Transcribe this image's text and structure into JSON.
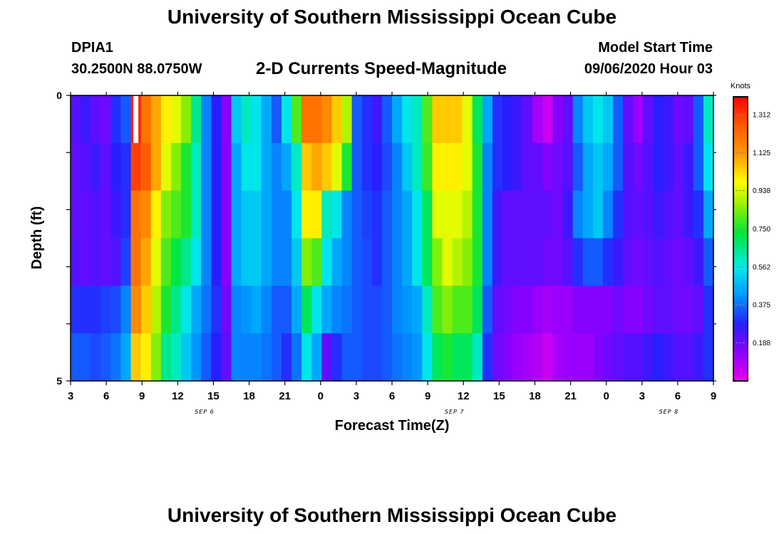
{
  "header": {
    "title": "University of Southern Mississippi Ocean Cube",
    "station": "DPIA1",
    "coordinates": "30.2500N 88.0750W",
    "plot_title": "2-D Currents Speed-Magnitude",
    "model_start_label": "Model Start Time",
    "model_start_value": "09/06/2020 Hour 03"
  },
  "footer": {
    "title": "University of Southern Mississippi Ocean Cube"
  },
  "colors": {
    "grid_line": "#000000",
    "missing_data": "#ffffff"
  },
  "chart_data": {
    "type": "heatmap",
    "title": "2-D Currents Speed-Magnitude",
    "xlabel": "Forecast Time(Z)",
    "ylabel": "Depth (ft)",
    "x_ticks": [
      "3",
      "6",
      "9",
      "12",
      "15",
      "18",
      "21",
      "0",
      "3",
      "6",
      "9",
      "12",
      "15",
      "18",
      "21",
      "0",
      "3",
      "6",
      "9"
    ],
    "date_labels": [
      {
        "label": "SEP 6",
        "after_tick": 3
      },
      {
        "label": "SEP 7",
        "after_tick": 10
      },
      {
        "label": "SEP 8",
        "after_tick": 16
      }
    ],
    "y_ticks": [
      "0",
      "5"
    ],
    "y_range": [
      0,
      5
    ],
    "x_range_hours": [
      0,
      54
    ],
    "colorbar": {
      "label": "Knots",
      "min": 0,
      "max": 1.4,
      "ticks": [
        "1.312",
        "1.125",
        "0.938",
        "0.750",
        "0.562",
        "0.375",
        "0.188"
      ]
    },
    "missing_cells": [
      {
        "row": 0,
        "col": 6
      }
    ],
    "rows": [
      [
        0.22,
        0.25,
        0.2,
        0.18,
        0.3,
        0.35,
        1.35,
        1.2,
        1.1,
        1.0,
        0.95,
        0.85,
        0.65,
        0.4,
        0.28,
        0.15,
        0.5,
        0.6,
        0.55,
        0.45,
        0.35,
        0.55,
        0.8,
        1.2,
        1.2,
        1.15,
        1.05,
        0.9,
        0.35,
        0.3,
        0.25,
        0.35,
        0.45,
        0.55,
        0.6,
        0.8,
        1.05,
        1.05,
        1.05,
        0.95,
        0.7,
        0.45,
        0.3,
        0.28,
        0.25,
        0.2,
        0.1,
        0.05,
        0.15,
        0.2,
        0.4,
        0.5,
        0.55,
        0.5,
        0.35,
        0.2,
        0.12,
        0.2,
        0.28,
        0.25,
        0.18,
        0.2,
        0.35,
        0.6
      ],
      [
        0.2,
        0.22,
        0.25,
        0.2,
        0.28,
        0.3,
        1.3,
        1.25,
        1.1,
        0.95,
        0.85,
        0.75,
        0.6,
        0.4,
        0.28,
        0.15,
        0.45,
        0.55,
        0.55,
        0.45,
        0.4,
        0.45,
        0.6,
        1.05,
        1.1,
        1.05,
        0.95,
        0.75,
        0.35,
        0.3,
        0.28,
        0.33,
        0.4,
        0.5,
        0.6,
        0.78,
        1.0,
        1.0,
        1.0,
        0.95,
        0.75,
        0.4,
        0.3,
        0.28,
        0.25,
        0.2,
        0.2,
        0.15,
        0.18,
        0.22,
        0.35,
        0.45,
        0.5,
        0.45,
        0.35,
        0.22,
        0.18,
        0.22,
        0.28,
        0.25,
        0.2,
        0.25,
        0.35,
        0.55
      ],
      [
        0.2,
        0.2,
        0.22,
        0.2,
        0.25,
        0.3,
        1.2,
        1.15,
        1.0,
        0.85,
        0.8,
        0.75,
        0.6,
        0.4,
        0.28,
        0.15,
        0.45,
        0.5,
        0.5,
        0.45,
        0.4,
        0.4,
        0.55,
        1.0,
        1.0,
        0.6,
        0.55,
        0.4,
        0.35,
        0.32,
        0.3,
        0.35,
        0.4,
        0.45,
        0.55,
        0.7,
        0.95,
        0.95,
        0.95,
        0.9,
        0.75,
        0.4,
        0.25,
        0.2,
        0.2,
        0.2,
        0.2,
        0.2,
        0.18,
        0.25,
        0.4,
        0.45,
        0.5,
        0.4,
        0.3,
        0.22,
        0.2,
        0.22,
        0.25,
        0.22,
        0.2,
        0.25,
        0.3,
        0.45
      ],
      [
        0.22,
        0.2,
        0.22,
        0.2,
        0.22,
        0.32,
        1.2,
        1.1,
        0.95,
        0.8,
        0.72,
        0.65,
        0.55,
        0.4,
        0.28,
        0.15,
        0.45,
        0.5,
        0.5,
        0.45,
        0.4,
        0.4,
        0.5,
        0.85,
        0.8,
        0.55,
        0.45,
        0.4,
        0.35,
        0.33,
        0.3,
        0.35,
        0.4,
        0.45,
        0.55,
        0.7,
        0.85,
        0.95,
        0.9,
        0.85,
        0.75,
        0.4,
        0.25,
        0.2,
        0.2,
        0.2,
        0.2,
        0.18,
        0.18,
        0.22,
        0.3,
        0.35,
        0.35,
        0.3,
        0.25,
        0.2,
        0.18,
        0.2,
        0.22,
        0.2,
        0.18,
        0.2,
        0.25,
        0.35
      ],
      [
        0.3,
        0.3,
        0.3,
        0.32,
        0.33,
        0.4,
        1.15,
        1.05,
        0.9,
        0.75,
        0.65,
        0.55,
        0.45,
        0.38,
        0.3,
        0.18,
        0.4,
        0.42,
        0.45,
        0.4,
        0.35,
        0.35,
        0.45,
        0.7,
        0.55,
        0.45,
        0.4,
        0.38,
        0.35,
        0.33,
        0.33,
        0.35,
        0.4,
        0.42,
        0.45,
        0.6,
        0.8,
        0.85,
        0.8,
        0.8,
        0.7,
        0.35,
        0.2,
        0.18,
        0.15,
        0.15,
        0.12,
        0.1,
        0.12,
        0.12,
        0.15,
        0.15,
        0.15,
        0.15,
        0.18,
        0.15,
        0.15,
        0.18,
        0.2,
        0.2,
        0.18,
        0.18,
        0.2,
        0.3
      ],
      [
        0.35,
        0.35,
        0.33,
        0.35,
        0.38,
        0.45,
        1.05,
        1.0,
        0.85,
        0.65,
        0.6,
        0.5,
        0.42,
        0.35,
        0.28,
        0.2,
        0.4,
        0.4,
        0.4,
        0.38,
        0.35,
        0.3,
        0.38,
        0.55,
        0.45,
        0.2,
        0.3,
        0.35,
        0.35,
        0.33,
        0.33,
        0.35,
        0.38,
        0.4,
        0.42,
        0.55,
        0.7,
        0.75,
        0.7,
        0.7,
        0.6,
        0.3,
        0.18,
        0.15,
        0.12,
        0.1,
        0.08,
        0.05,
        0.1,
        0.12,
        0.12,
        0.12,
        0.15,
        0.18,
        0.2,
        0.22,
        0.22,
        0.25,
        0.28,
        0.25,
        0.22,
        0.22,
        0.25,
        0.3
      ]
    ]
  }
}
